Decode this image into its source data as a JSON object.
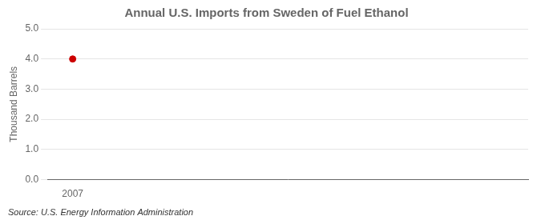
{
  "chart_data": {
    "type": "scatter",
    "title": "Annual U.S. Imports from Sweden of Fuel Ethanol",
    "ylabel": "Thousand Barrels",
    "source": "Source: U.S. Energy Information Administration",
    "x": [
      2007
    ],
    "values": [
      4.0
    ],
    "color": "#cc0000",
    "marker": "circle",
    "xlim": [
      2006.5,
      2016
    ],
    "ylim": [
      0.0,
      5.0
    ],
    "xticks": [
      2007
    ],
    "yticks": [
      {
        "value": 0.0,
        "label": "0.0"
      },
      {
        "value": 1.0,
        "label": "1.0"
      },
      {
        "value": 2.0,
        "label": "2.0"
      },
      {
        "value": 3.0,
        "label": "3.0"
      },
      {
        "value": 4.0,
        "label": "4.0"
      },
      {
        "value": 5.0,
        "label": "5.0"
      }
    ],
    "grid": "y"
  }
}
